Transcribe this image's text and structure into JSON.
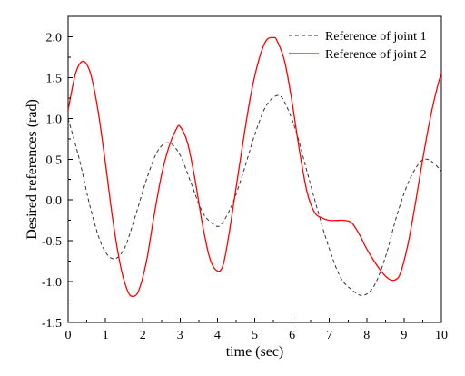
{
  "chart_data": {
    "type": "line",
    "title": "",
    "xlabel": "time (sec)",
    "ylabel": "Desired references (rad)",
    "xlim": [
      0,
      10
    ],
    "ylim": [
      -1.5,
      2.25
    ],
    "xticks": [
      0,
      1,
      2,
      3,
      4,
      5,
      6,
      7,
      8,
      9,
      10
    ],
    "yticks": [
      -1.5,
      -1.0,
      -0.5,
      0.0,
      0.5,
      1.0,
      1.5,
      2.0
    ],
    "xtick_labels": [
      "0",
      "1",
      "2",
      "3",
      "4",
      "5",
      "6",
      "7",
      "8",
      "9",
      "10"
    ],
    "ytick_labels": [
      "-1.5",
      "-1.0",
      "-0.5",
      "0.0",
      "0.5",
      "1.0",
      "1.5",
      "2.0"
    ],
    "grid": false,
    "legend_position": "top-right",
    "series": [
      {
        "name": "Reference of joint 1",
        "color": "#333333",
        "style": "dashed",
        "x": [
          0,
          0.3,
          0.6,
          0.9,
          1.2,
          1.5,
          1.8,
          2.1,
          2.4,
          2.7,
          3.0,
          3.3,
          3.6,
          3.9,
          4.1,
          4.4,
          4.7,
          5.0,
          5.3,
          5.6,
          5.8,
          6.1,
          6.4,
          6.7,
          7.0,
          7.3,
          7.6,
          7.9,
          8.2,
          8.5,
          8.8,
          9.1,
          9.4,
          9.6,
          9.8,
          10.0
        ],
        "y": [
          1.0,
          0.5,
          -0.1,
          -0.55,
          -0.72,
          -0.6,
          -0.2,
          0.25,
          0.6,
          0.7,
          0.55,
          0.2,
          -0.15,
          -0.3,
          -0.3,
          -0.05,
          0.35,
          0.8,
          1.15,
          1.28,
          1.2,
          0.85,
          0.35,
          -0.15,
          -0.6,
          -0.95,
          -1.1,
          -1.17,
          -1.05,
          -0.7,
          -0.2,
          0.2,
          0.45,
          0.5,
          0.45,
          0.35
        ]
      },
      {
        "name": "Reference of joint 2",
        "color": "#ff0000",
        "style": "solid",
        "x": [
          0,
          0.2,
          0.4,
          0.6,
          0.8,
          1.0,
          1.2,
          1.4,
          1.6,
          1.75,
          1.9,
          2.1,
          2.3,
          2.5,
          2.7,
          2.9,
          3.0,
          3.2,
          3.4,
          3.6,
          3.8,
          4.0,
          4.15,
          4.3,
          4.5,
          4.7,
          4.9,
          5.1,
          5.3,
          5.5,
          5.6,
          5.8,
          6.0,
          6.2,
          6.4,
          6.6,
          6.8,
          7.0,
          7.2,
          7.4,
          7.6,
          7.8,
          8.0,
          8.2,
          8.4,
          8.6,
          8.75,
          8.9,
          9.1,
          9.3,
          9.5,
          9.7,
          9.9,
          10.0
        ],
        "y": [
          1.1,
          1.55,
          1.7,
          1.55,
          1.1,
          0.45,
          -0.25,
          -0.8,
          -1.12,
          -1.18,
          -1.1,
          -0.75,
          -0.2,
          0.3,
          0.65,
          0.87,
          0.9,
          0.7,
          0.25,
          -0.3,
          -0.72,
          -0.87,
          -0.8,
          -0.45,
          0.15,
          0.75,
          1.3,
          1.7,
          1.95,
          1.99,
          1.95,
          1.7,
          1.2,
          0.6,
          0.1,
          -0.15,
          -0.22,
          -0.25,
          -0.25,
          -0.25,
          -0.28,
          -0.42,
          -0.6,
          -0.75,
          -0.88,
          -0.97,
          -0.98,
          -0.9,
          -0.55,
          -0.05,
          0.5,
          1.0,
          1.4,
          1.55
        ]
      }
    ]
  }
}
